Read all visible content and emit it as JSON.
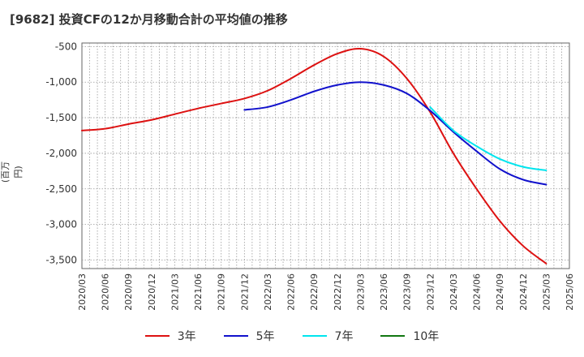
{
  "chart_data": {
    "type": "line",
    "title": "[9682]  投資CFの12か月移動合計の平均値の推移",
    "ylabel": "(百万円)",
    "ylim": [
      -3620,
      -450
    ],
    "yticks": [
      -500,
      -1000,
      -1500,
      -2000,
      -2500,
      -3000,
      -3500
    ],
    "ytick_labels": [
      "-500",
      "-1,000",
      "-1,500",
      "-2,000",
      "-2,500",
      "-3,000",
      "-3,500"
    ],
    "x_ticks": [
      "2020/03",
      "2020/06",
      "2020/09",
      "2020/12",
      "2021/03",
      "2021/06",
      "2021/09",
      "2021/12",
      "2022/03",
      "2022/06",
      "2022/09",
      "2022/12",
      "2023/03",
      "2023/06",
      "2023/09",
      "2023/12",
      "2024/03",
      "2024/06",
      "2024/09",
      "2024/12",
      "2025/03",
      "2025/06"
    ],
    "grid": true,
    "legend_position": "bottom",
    "series": [
      {
        "name": "3年",
        "color": "#dd1111",
        "points": [
          [
            "2020/03",
            -1680
          ],
          [
            "2020/06",
            -1655
          ],
          [
            "2020/09",
            -1590
          ],
          [
            "2020/12",
            -1530
          ],
          [
            "2021/03",
            -1450
          ],
          [
            "2021/06",
            -1370
          ],
          [
            "2021/09",
            -1300
          ],
          [
            "2021/12",
            -1230
          ],
          [
            "2022/03",
            -1120
          ],
          [
            "2022/06",
            -950
          ],
          [
            "2022/09",
            -760
          ],
          [
            "2022/12",
            -600
          ],
          [
            "2023/03",
            -530
          ],
          [
            "2023/06",
            -640
          ],
          [
            "2023/09",
            -950
          ],
          [
            "2023/12",
            -1420
          ],
          [
            "2024/03",
            -2000
          ],
          [
            "2024/06",
            -2500
          ],
          [
            "2024/09",
            -2950
          ],
          [
            "2024/12",
            -3300
          ],
          [
            "2025/03",
            -3550
          ]
        ]
      },
      {
        "name": "5年",
        "color": "#1111cc",
        "points": [
          [
            "2021/12",
            -1390
          ],
          [
            "2022/03",
            -1350
          ],
          [
            "2022/06",
            -1250
          ],
          [
            "2022/09",
            -1130
          ],
          [
            "2022/12",
            -1040
          ],
          [
            "2023/03",
            -1000
          ],
          [
            "2023/06",
            -1040
          ],
          [
            "2023/09",
            -1160
          ],
          [
            "2023/12",
            -1400
          ],
          [
            "2024/03",
            -1700
          ],
          [
            "2024/06",
            -1970
          ],
          [
            "2024/09",
            -2220
          ],
          [
            "2024/12",
            -2370
          ],
          [
            "2025/03",
            -2440
          ]
        ]
      },
      {
        "name": "7年",
        "color": "#00e5ee",
        "points": [
          [
            "2023/12",
            -1350
          ],
          [
            "2024/03",
            -1680
          ],
          [
            "2024/06",
            -1900
          ],
          [
            "2024/09",
            -2080
          ],
          [
            "2024/12",
            -2190
          ],
          [
            "2025/03",
            -2240
          ]
        ]
      },
      {
        "name": "10年",
        "color": "#117711",
        "points": []
      }
    ]
  }
}
